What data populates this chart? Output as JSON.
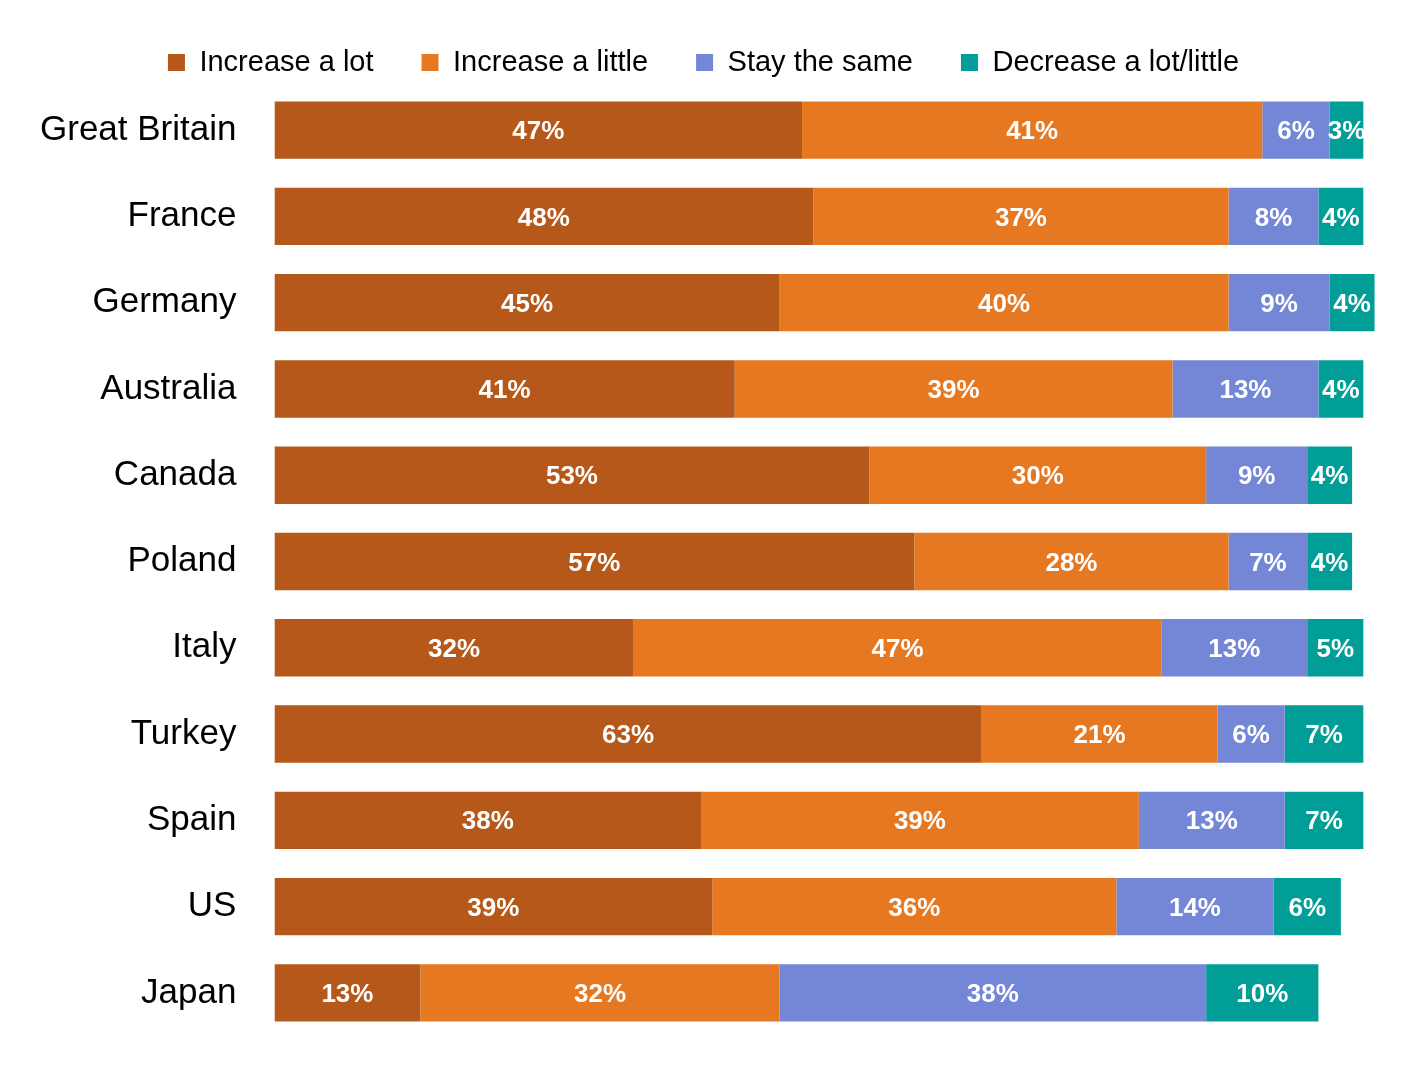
{
  "chart_data": {
    "type": "bar",
    "orientation": "horizontal",
    "stacked": true,
    "legend": "top",
    "tick_labels": "y",
    "categories": [
      "Great Britain",
      "France",
      "Germany",
      "Australia",
      "Canada",
      "Poland",
      "Italy",
      "Turkey",
      "Spain",
      "US",
      "Japan"
    ],
    "series": [
      {
        "name": "Increase a lot",
        "color": "#b5581a",
        "values": [
          47,
          48,
          45,
          41,
          53,
          57,
          32,
          63,
          38,
          39,
          13
        ],
        "value_labels": [
          "47%",
          "48%",
          "45%",
          "41%",
          "53%",
          "57%",
          "32%",
          "63%",
          "38%",
          "39%",
          "13%"
        ]
      },
      {
        "name": "Increase a little",
        "color": "#e67822",
        "values": [
          41,
          37,
          40,
          39,
          30,
          28,
          47,
          21,
          39,
          36,
          32
        ],
        "value_labels": [
          "41%",
          "37%",
          "40%",
          "39%",
          "30%",
          "28%",
          "47%",
          "21%",
          "39%",
          "36%",
          "32%"
        ]
      },
      {
        "name": "Stay the same",
        "color": "#7387d6",
        "values": [
          6,
          8,
          9,
          13,
          9,
          7,
          13,
          6,
          13,
          14,
          38
        ],
        "value_labels": [
          "6%",
          "8%",
          "9%",
          "13%",
          "9%",
          "7%",
          "13%",
          "6%",
          "13%",
          "14%",
          "38%"
        ]
      },
      {
        "name": "Decrease a lot/little",
        "color": "#009e96",
        "values": [
          3,
          4,
          4,
          4,
          4,
          4,
          5,
          7,
          7,
          6,
          10
        ],
        "value_labels": [
          "3%",
          "4%",
          "4%",
          "4%",
          "4%",
          "4%",
          "5%",
          "7%",
          "7%",
          "6%",
          "10%"
        ]
      }
    ]
  }
}
